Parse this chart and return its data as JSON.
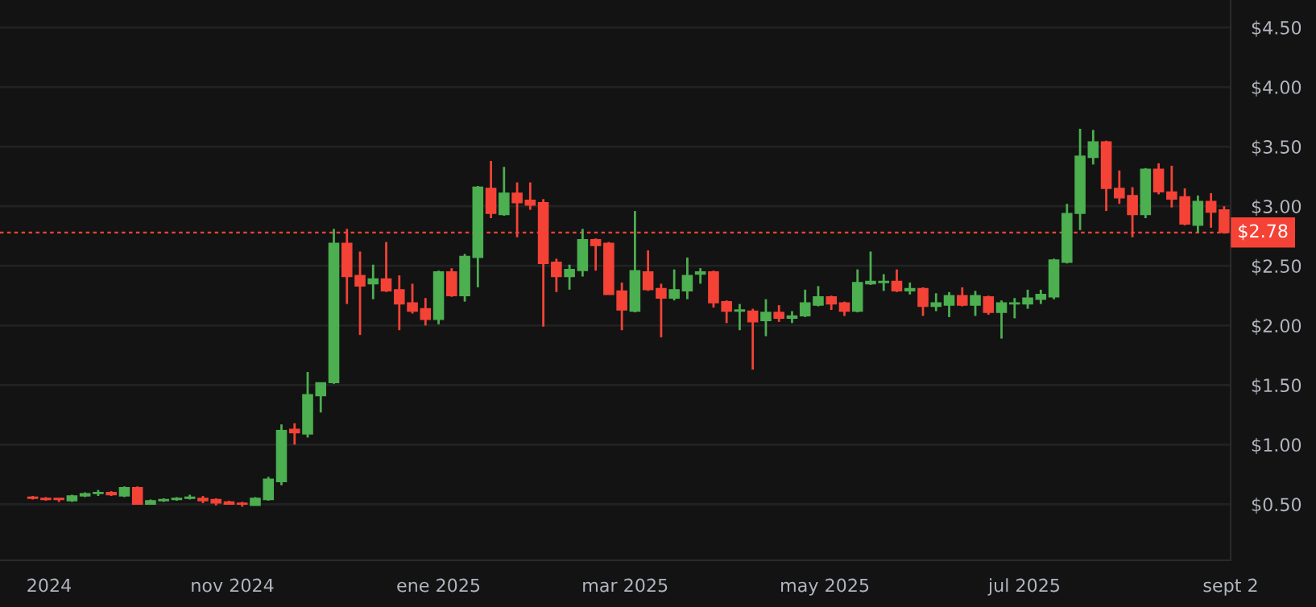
{
  "chart_data": {
    "type": "candlestick",
    "x": [
      "2024-09-01",
      "2024-09-05",
      "2024-09-09",
      "2024-09-13",
      "2024-09-17",
      "2024-09-21",
      "2024-09-25",
      "2024-09-29",
      "2024-10-03",
      "2024-10-07",
      "2024-10-11",
      "2024-10-15",
      "2024-10-19",
      "2024-10-23",
      "2024-10-27",
      "2024-10-31",
      "2024-11-04",
      "2024-11-08",
      "2024-11-12",
      "2024-11-16",
      "2024-11-20",
      "2024-11-24",
      "2024-11-28",
      "2024-12-02",
      "2024-12-06",
      "2024-12-10",
      "2024-12-14",
      "2024-12-18",
      "2024-12-22",
      "2024-12-26",
      "2024-12-30",
      "2025-01-03",
      "2025-01-07",
      "2025-01-11",
      "2025-01-15",
      "2025-01-19",
      "2025-01-23",
      "2025-01-27",
      "2025-01-31",
      "2025-02-04",
      "2025-02-08",
      "2025-02-12",
      "2025-02-16",
      "2025-02-20",
      "2025-02-24",
      "2025-02-28",
      "2025-03-04",
      "2025-03-08",
      "2025-03-12",
      "2025-03-16",
      "2025-03-20",
      "2025-03-24",
      "2025-03-28",
      "2025-04-01",
      "2025-04-05",
      "2025-04-09",
      "2025-04-13",
      "2025-04-17",
      "2025-04-21",
      "2025-04-25",
      "2025-04-29",
      "2025-05-03",
      "2025-05-07",
      "2025-05-11",
      "2025-05-15",
      "2025-05-19",
      "2025-05-23",
      "2025-05-27",
      "2025-05-31",
      "2025-06-04",
      "2025-06-08",
      "2025-06-12",
      "2025-06-16",
      "2025-06-20",
      "2025-06-24",
      "2025-06-28",
      "2025-07-02",
      "2025-07-06",
      "2025-07-10",
      "2025-07-14",
      "2025-07-18",
      "2025-07-22",
      "2025-07-26",
      "2025-07-30",
      "2025-08-03",
      "2025-08-07",
      "2025-08-11",
      "2025-08-15",
      "2025-08-19",
      "2025-08-23",
      "2025-08-27",
      "2025-08-31"
    ],
    "ohlc": [
      [
        0.56,
        0.57,
        0.54,
        0.55
      ],
      [
        0.55,
        0.56,
        0.53,
        0.54
      ],
      [
        0.55,
        0.55,
        0.52,
        0.54
      ],
      [
        0.53,
        0.58,
        0.52,
        0.57
      ],
      [
        0.57,
        0.6,
        0.56,
        0.59
      ],
      [
        0.59,
        0.62,
        0.57,
        0.6
      ],
      [
        0.6,
        0.61,
        0.57,
        0.58
      ],
      [
        0.57,
        0.65,
        0.56,
        0.64
      ],
      [
        0.64,
        0.65,
        0.5,
        0.5
      ],
      [
        0.5,
        0.54,
        0.5,
        0.53
      ],
      [
        0.53,
        0.55,
        0.52,
        0.54
      ],
      [
        0.54,
        0.56,
        0.53,
        0.55
      ],
      [
        0.55,
        0.58,
        0.54,
        0.56
      ],
      [
        0.55,
        0.57,
        0.51,
        0.53
      ],
      [
        0.54,
        0.55,
        0.49,
        0.51
      ],
      [
        0.52,
        0.53,
        0.5,
        0.5
      ],
      [
        0.51,
        0.52,
        0.48,
        0.5
      ],
      [
        0.49,
        0.56,
        0.49,
        0.55
      ],
      [
        0.54,
        0.73,
        0.53,
        0.71
      ],
      [
        0.69,
        1.17,
        0.66,
        1.12
      ],
      [
        1.13,
        1.18,
        1.0,
        1.1
      ],
      [
        1.09,
        1.61,
        1.06,
        1.42
      ],
      [
        1.41,
        1.52,
        1.27,
        1.52
      ],
      [
        1.52,
        2.81,
        1.51,
        2.69
      ],
      [
        2.69,
        2.81,
        2.18,
        2.41
      ],
      [
        2.42,
        2.62,
        1.92,
        2.33
      ],
      [
        2.35,
        2.51,
        2.22,
        2.39
      ],
      [
        2.39,
        2.7,
        2.28,
        2.29
      ],
      [
        2.3,
        2.42,
        1.96,
        2.18
      ],
      [
        2.19,
        2.35,
        2.1,
        2.12
      ],
      [
        2.14,
        2.23,
        2.0,
        2.05
      ],
      [
        2.05,
        2.46,
        2.01,
        2.45
      ],
      [
        2.45,
        2.48,
        2.24,
        2.25
      ],
      [
        2.25,
        2.6,
        2.2,
        2.58
      ],
      [
        2.57,
        3.17,
        2.32,
        3.16
      ],
      [
        3.15,
        3.38,
        2.9,
        2.94
      ],
      [
        2.93,
        3.33,
        2.92,
        3.11
      ],
      [
        3.11,
        3.2,
        2.74,
        3.03
      ],
      [
        3.05,
        3.2,
        2.97,
        3.01
      ],
      [
        3.03,
        3.06,
        1.99,
        2.52
      ],
      [
        2.53,
        2.56,
        2.28,
        2.41
      ],
      [
        2.41,
        2.51,
        2.3,
        2.47
      ],
      [
        2.46,
        2.81,
        2.41,
        2.72
      ],
      [
        2.72,
        2.73,
        2.46,
        2.67
      ],
      [
        2.69,
        2.7,
        2.26,
        2.26
      ],
      [
        2.29,
        2.36,
        1.96,
        2.13
      ],
      [
        2.12,
        2.96,
        2.11,
        2.46
      ],
      [
        2.45,
        2.63,
        2.29,
        2.3
      ],
      [
        2.31,
        2.35,
        1.9,
        2.23
      ],
      [
        2.23,
        2.47,
        2.21,
        2.3
      ],
      [
        2.29,
        2.57,
        2.22,
        2.42
      ],
      [
        2.43,
        2.48,
        2.35,
        2.45
      ],
      [
        2.45,
        2.46,
        2.15,
        2.19
      ],
      [
        2.2,
        2.21,
        2.02,
        2.12
      ],
      [
        2.12,
        2.18,
        1.96,
        2.13
      ],
      [
        2.12,
        2.14,
        1.63,
        2.03
      ],
      [
        2.04,
        2.22,
        1.91,
        2.11
      ],
      [
        2.11,
        2.17,
        2.03,
        2.06
      ],
      [
        2.06,
        2.12,
        2.02,
        2.08
      ],
      [
        2.08,
        2.3,
        2.07,
        2.19
      ],
      [
        2.17,
        2.33,
        2.16,
        2.24
      ],
      [
        2.24,
        2.25,
        2.13,
        2.18
      ],
      [
        2.19,
        2.2,
        2.08,
        2.12
      ],
      [
        2.12,
        2.47,
        2.11,
        2.36
      ],
      [
        2.35,
        2.62,
        2.34,
        2.37
      ],
      [
        2.36,
        2.43,
        2.29,
        2.37
      ],
      [
        2.37,
        2.47,
        2.28,
        2.29
      ],
      [
        2.29,
        2.36,
        2.26,
        2.31
      ],
      [
        2.31,
        2.32,
        2.08,
        2.16
      ],
      [
        2.16,
        2.27,
        2.12,
        2.19
      ],
      [
        2.17,
        2.28,
        2.07,
        2.25
      ],
      [
        2.25,
        2.32,
        2.16,
        2.17
      ],
      [
        2.17,
        2.29,
        2.08,
        2.25
      ],
      [
        2.24,
        2.25,
        2.09,
        2.11
      ],
      [
        2.11,
        2.21,
        1.89,
        2.19
      ],
      [
        2.18,
        2.23,
        2.06,
        2.19
      ],
      [
        2.18,
        2.3,
        2.14,
        2.23
      ],
      [
        2.22,
        2.3,
        2.18,
        2.26
      ],
      [
        2.24,
        2.56,
        2.22,
        2.55
      ],
      [
        2.53,
        3.02,
        2.52,
        2.94
      ],
      [
        2.94,
        3.65,
        2.8,
        3.42
      ],
      [
        3.41,
        3.64,
        3.35,
        3.54
      ],
      [
        3.54,
        3.55,
        2.96,
        3.15
      ],
      [
        3.15,
        3.3,
        3.02,
        3.07
      ],
      [
        3.09,
        3.16,
        2.74,
        2.93
      ],
      [
        2.93,
        3.32,
        2.9,
        3.31
      ],
      [
        3.31,
        3.36,
        3.1,
        3.12
      ],
      [
        3.12,
        3.34,
        2.99,
        3.06
      ],
      [
        3.08,
        3.15,
        2.84,
        2.85
      ],
      [
        2.84,
        3.09,
        2.78,
        3.04
      ],
      [
        3.04,
        3.11,
        2.82,
        2.95
      ],
      [
        2.97,
        3.0,
        2.77,
        2.78
      ]
    ],
    "colors": [
      "#f44336",
      "#f44336",
      "#f44336",
      "#4caf50",
      "#4caf50",
      "#4caf50",
      "#f44336",
      "#4caf50",
      "#f44336",
      "#4caf50",
      "#4caf50",
      "#4caf50",
      "#4caf50",
      "#f44336",
      "#f44336",
      "#f44336",
      "#f44336",
      "#4caf50",
      "#4caf50",
      "#4caf50",
      "#f44336",
      "#4caf50",
      "#4caf50",
      "#4caf50",
      "#f44336",
      "#f44336",
      "#4caf50",
      "#f44336",
      "#f44336",
      "#f44336",
      "#f44336",
      "#4caf50",
      "#f44336",
      "#4caf50",
      "#4caf50",
      "#f44336",
      "#4caf50",
      "#f44336",
      "#f44336",
      "#f44336",
      "#f44336",
      "#4caf50",
      "#4caf50",
      "#f44336",
      "#f44336",
      "#f44336",
      "#4caf50",
      "#f44336",
      "#f44336",
      "#4caf50",
      "#4caf50",
      "#4caf50",
      "#f44336",
      "#f44336",
      "#4caf50",
      "#f44336",
      "#4caf50",
      "#f44336",
      "#4caf50",
      "#4caf50",
      "#4caf50",
      "#f44336",
      "#f44336",
      "#4caf50",
      "#4caf50",
      "#4caf50",
      "#f44336",
      "#4caf50",
      "#f44336",
      "#4caf50",
      "#4caf50",
      "#f44336",
      "#4caf50",
      "#f44336",
      "#4caf50",
      "#4caf50",
      "#4caf50",
      "#4caf50",
      "#4caf50",
      "#4caf50",
      "#4caf50",
      "#4caf50",
      "#f44336",
      "#f44336",
      "#f44336",
      "#4caf50",
      "#f44336",
      "#f44336",
      "#f44336",
      "#4caf50",
      "#f44336",
      "#f44336"
    ],
    "xlim": [
      "2024-08-22",
      "2025-09-02"
    ],
    "xticks": [
      {
        "value": "2024-09-06",
        "label": "2024"
      },
      {
        "value": "2024-11-01",
        "label": "nov 2024"
      },
      {
        "value": "2025-01-03",
        "label": "ene 2025"
      },
      {
        "value": "2025-03-01",
        "label": "mar 2025"
      },
      {
        "value": "2025-05-01",
        "label": "may 2025"
      },
      {
        "value": "2025-07-01",
        "label": "jul 2025"
      },
      {
        "value": "2025-09-02",
        "label": "sept 2"
      }
    ],
    "ylim": [
      0.03,
      4.73
    ],
    "yticks": [
      {
        "value": 0.5,
        "label": "$0.50"
      },
      {
        "value": 1.0,
        "label": "$1.00"
      },
      {
        "value": 1.5,
        "label": "$1.50"
      },
      {
        "value": 2.0,
        "label": "$2.00"
      },
      {
        "value": 2.5,
        "label": "$2.50"
      },
      {
        "value": 3.0,
        "label": "$3.00"
      },
      {
        "value": 3.5,
        "label": "$3.50"
      },
      {
        "value": 4.0,
        "label": "$4.00"
      },
      {
        "value": 4.5,
        "label": "$4.50"
      }
    ],
    "grid": "y",
    "ref_lines": [
      {
        "axis": "y",
        "value": 2.78,
        "label": "$2.78",
        "color": "#f44336",
        "line_style": "dotted"
      }
    ]
  }
}
